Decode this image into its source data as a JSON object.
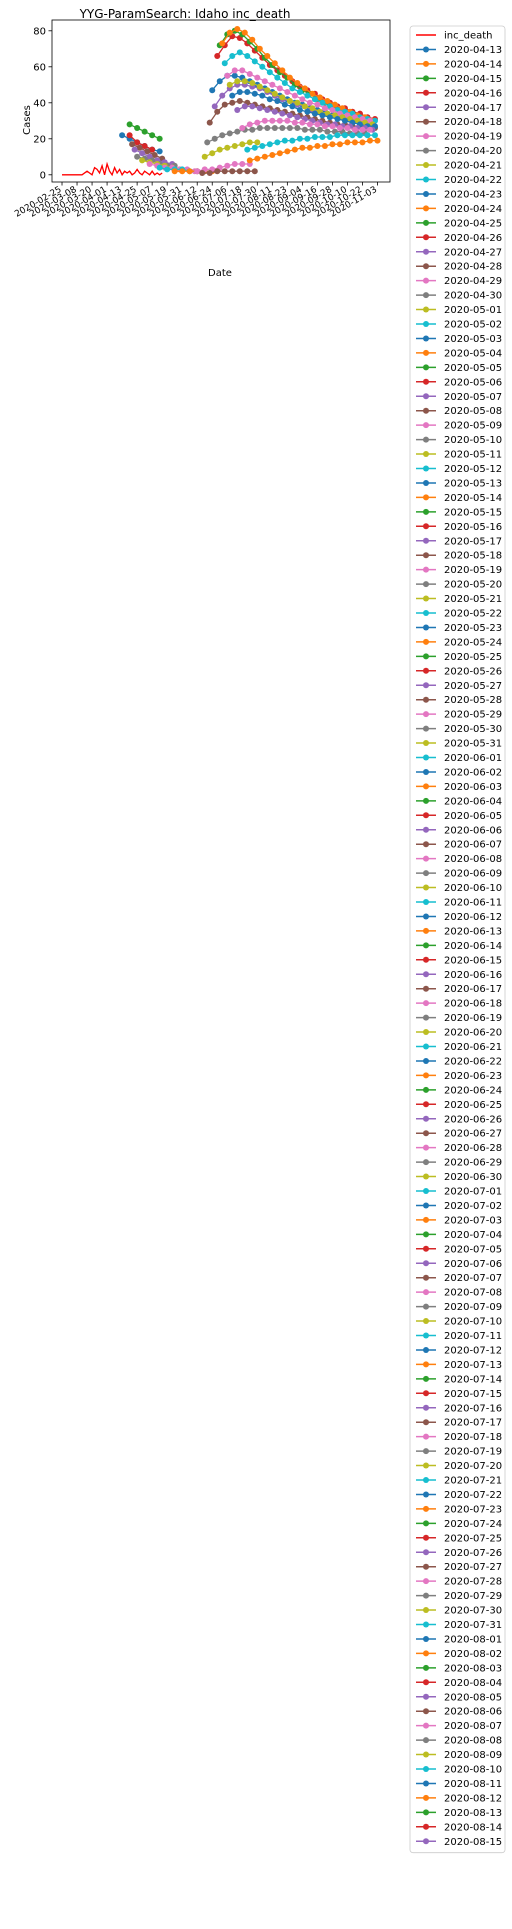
{
  "chart_data": {
    "type": "line",
    "title": "YYG-ParamSearch: Idaho inc_death",
    "xlabel": "Date",
    "ylabel": "Cases",
    "ylim": [
      -4,
      86
    ],
    "yticks": [
      0,
      20,
      40,
      60,
      80
    ],
    "x_tick_labels": [
      "2020-02-25",
      "2020-03-08",
      "2020-03-20",
      "2020-04-01",
      "2020-04-13",
      "2020-04-25",
      "2020-05-07",
      "2020-05-19",
      "2020-05-31",
      "2020-06-12",
      "2020-06-24",
      "2020-07-06",
      "2020-07-18",
      "2020-07-30",
      "2020-08-11",
      "2020-08-23",
      "2020-09-04",
      "2020-09-16",
      "2020-09-28",
      "2020-10-10",
      "2020-10-22",
      "2020-11-03"
    ],
    "actual": {
      "name": "inc_death",
      "color": "#ff0000",
      "x": [
        0,
        8,
        16,
        20,
        22,
        24,
        26,
        28,
        30,
        32,
        34,
        36,
        38,
        40,
        42,
        44,
        46,
        48,
        50,
        52,
        54,
        56,
        58,
        60,
        62,
        64,
        66,
        68,
        70,
        72,
        74,
        76,
        78,
        80
      ],
      "values": [
        0,
        0,
        0,
        2,
        1,
        0,
        4,
        3,
        1,
        5,
        0,
        6,
        2,
        0,
        4,
        1,
        3,
        0,
        2,
        1,
        2,
        0,
        1,
        3,
        1,
        0,
        2,
        1,
        0,
        2,
        0,
        1,
        0,
        1
      ]
    },
    "forecast_series_start": "2020-04-13",
    "forecast_series_end": "2020-08-15",
    "legend_title_series": "inc_death",
    "legend_dates": [],
    "palette": [
      "#1f77b4",
      "#ff7f0e",
      "#2ca02c",
      "#d62728",
      "#9467bd",
      "#8c564b",
      "#e377c2",
      "#7f7f7f",
      "#bcbd22",
      "#17becf"
    ],
    "forecast_groups": [
      {
        "start_day": 48,
        "days": [
          48,
          54,
          60,
          66,
          72,
          78
        ],
        "values": [
          22,
          20,
          18,
          16,
          14,
          13
        ],
        "color": "#1f77b4"
      },
      {
        "start_day": 54,
        "days": [
          54,
          60,
          66,
          72,
          78
        ],
        "values": [
          28,
          26,
          24,
          22,
          20
        ],
        "color": "#2ca02c"
      },
      {
        "start_day": 54,
        "days": [
          54,
          60,
          66,
          72
        ],
        "values": [
          22,
          18,
          16,
          14
        ],
        "color": "#d62728"
      },
      {
        "start_day": 56,
        "days": [
          56,
          62,
          68,
          74,
          80
        ],
        "values": [
          17,
          15,
          13,
          11,
          9
        ],
        "color": "#8c564b"
      },
      {
        "start_day": 58,
        "days": [
          58,
          64,
          70,
          76,
          82,
          88
        ],
        "values": [
          14,
          12,
          10,
          8,
          7,
          6
        ],
        "color": "#9467bd"
      },
      {
        "start_day": 60,
        "days": [
          60,
          66,
          72,
          78,
          84,
          90
        ],
        "values": [
          10,
          9,
          8,
          6,
          5,
          5
        ],
        "color": "#7f7f7f"
      },
      {
        "start_day": 64,
        "days": [
          64,
          70,
          76,
          82,
          88,
          94
        ],
        "values": [
          8,
          7,
          6,
          5,
          4,
          3
        ],
        "color": "#bcbd22"
      },
      {
        "start_day": 70,
        "days": [
          70,
          76,
          82,
          88,
          94,
          100,
          106
        ],
        "values": [
          6,
          5,
          4,
          4,
          3,
          3,
          2
        ],
        "color": "#e377c2"
      },
      {
        "start_day": 78,
        "days": [
          78,
          84,
          90,
          96,
          102,
          108,
          114
        ],
        "values": [
          4,
          3,
          3,
          3,
          2,
          2,
          2
        ],
        "color": "#17becf"
      },
      {
        "start_day": 90,
        "days": [
          90,
          96,
          102,
          108,
          114,
          120
        ],
        "values": [
          2,
          2,
          2,
          2,
          2,
          2
        ],
        "color": "#ff7f0e"
      },
      {
        "start_day": 108,
        "days": [
          108,
          114,
          120,
          126,
          132,
          138,
          144,
          150
        ],
        "values": [
          2,
          3,
          3,
          4,
          5,
          6,
          6,
          6
        ],
        "color": "#e377c2"
      },
      {
        "start_day": 112,
        "days": [
          112,
          118,
          124,
          130,
          136,
          142,
          148,
          154
        ],
        "values": [
          1,
          1,
          2,
          2,
          2,
          2,
          2,
          2
        ],
        "color": "#8c564b"
      },
      {
        "start_day": 114,
        "days": [
          114,
          120,
          126,
          132,
          138,
          144,
          150,
          156
        ],
        "values": [
          10,
          12,
          14,
          15,
          16,
          17,
          18,
          18
        ],
        "color": "#bcbd22"
      },
      {
        "start_day": 116,
        "days": [
          116,
          122,
          128,
          134,
          140,
          146,
          152,
          158,
          164,
          170,
          176,
          182,
          188,
          194,
          200,
          206,
          212,
          218,
          224,
          230,
          236,
          242
        ],
        "values": [
          18,
          20,
          22,
          23,
          24,
          25,
          25,
          26,
          26,
          26,
          26,
          26,
          26,
          25,
          25,
          25,
          24,
          24,
          24,
          23,
          23,
          23
        ],
        "color": "#7f7f7f"
      },
      {
        "start_day": 118,
        "days": [
          118,
          124,
          130,
          136,
          142,
          148,
          154,
          160,
          166,
          172,
          178,
          184,
          190,
          196,
          202,
          208,
          214,
          220,
          226,
          232,
          238,
          244,
          250
        ],
        "values": [
          29,
          35,
          39,
          40,
          41,
          40,
          39,
          38,
          37,
          36,
          35,
          34,
          33,
          32,
          31,
          30,
          29,
          28,
          28,
          27,
          27,
          26,
          26
        ],
        "color": "#8c564b"
      },
      {
        "start_day": 120,
        "days": [
          120,
          126,
          132,
          138,
          144,
          150,
          156,
          162,
          168,
          174,
          180,
          186,
          192,
          198,
          204,
          210,
          216,
          222,
          228,
          234,
          240,
          246
        ],
        "values": [
          47,
          52,
          55,
          55,
          54,
          52,
          50,
          48,
          46,
          44,
          42,
          40,
          39,
          37,
          36,
          35,
          33,
          32,
          31,
          30,
          29,
          28
        ],
        "color": "#1f77b4"
      },
      {
        "start_day": 124,
        "days": [
          124,
          130,
          136,
          142,
          148,
          154,
          160,
          166,
          172,
          178,
          184,
          190,
          196,
          202,
          208,
          214,
          220,
          226,
          232,
          238,
          244,
          250
        ],
        "values": [
          66,
          72,
          77,
          76,
          73,
          69,
          65,
          61,
          58,
          55,
          52,
          49,
          47,
          45,
          42,
          40,
          38,
          37,
          35,
          34,
          32,
          31
        ],
        "color": "#d62728"
      },
      {
        "start_day": 126,
        "days": [
          126,
          132,
          138,
          144,
          150,
          156,
          162,
          168,
          174,
          180,
          186,
          192,
          198,
          204,
          210,
          216,
          222,
          228,
          234,
          240,
          246
        ],
        "values": [
          72,
          78,
          80,
          78,
          74,
          70,
          65,
          61,
          57,
          54,
          50,
          47,
          45,
          42,
          40,
          38,
          36,
          34,
          33,
          31,
          30
        ],
        "color": "#2ca02c"
      },
      {
        "start_day": 128,
        "days": [
          128,
          134,
          140,
          146,
          152,
          158,
          164,
          170,
          176,
          182,
          188,
          194,
          200,
          206,
          212,
          218,
          224,
          230,
          236,
          242,
          248
        ],
        "values": [
          73,
          79,
          81,
          79,
          75,
          70,
          66,
          62,
          58,
          54,
          51,
          48,
          45,
          43,
          41,
          39,
          37,
          35,
          33,
          32,
          30
        ],
        "color": "#ff7f0e"
      },
      {
        "start_day": 130,
        "days": [
          130,
          136,
          142,
          148,
          154,
          160,
          166,
          172,
          178,
          184,
          190,
          196,
          202,
          208,
          214,
          220,
          226,
          232,
          238,
          244,
          250
        ],
        "values": [
          62,
          66,
          68,
          66,
          63,
          60,
          57,
          54,
          51,
          48,
          46,
          44,
          42,
          40,
          38,
          36,
          35,
          34,
          32,
          31,
          30
        ],
        "color": "#17becf"
      },
      {
        "start_day": 122,
        "days": [
          122,
          128,
          134,
          140,
          146,
          152,
          158,
          164,
          170,
          176,
          182,
          188,
          194,
          200,
          206,
          212,
          218,
          224,
          230,
          236,
          242,
          248
        ],
        "values": [
          38,
          44,
          48,
          50,
          50,
          49,
          48,
          46,
          44,
          42,
          41,
          39,
          38,
          36,
          35,
          34,
          33,
          32,
          31,
          30,
          29,
          28
        ],
        "color": "#9467bd"
      },
      {
        "start_day": 132,
        "days": [
          132,
          138,
          144,
          150,
          156,
          162,
          168,
          174,
          180,
          186,
          192,
          198,
          204,
          210,
          216,
          222,
          228,
          234,
          240,
          246
        ],
        "values": [
          55,
          58,
          58,
          56,
          54,
          52,
          50,
          48,
          46,
          44,
          42,
          40,
          39,
          37,
          36,
          34,
          33,
          32,
          31,
          30
        ],
        "color": "#e377c2"
      },
      {
        "start_day": 134,
        "days": [
          134,
          140,
          146,
          152,
          158,
          164,
          170,
          176,
          182,
          188,
          194,
          200,
          206,
          212,
          218,
          224,
          230,
          236,
          242,
          248
        ],
        "values": [
          50,
          52,
          52,
          51,
          49,
          47,
          45,
          43,
          41,
          40,
          38,
          37,
          35,
          34,
          33,
          32,
          31,
          30,
          29,
          28
        ],
        "color": "#bcbd22"
      },
      {
        "start_day": 136,
        "days": [
          136,
          142,
          148,
          154,
          160,
          166,
          172,
          178,
          184,
          190,
          196,
          202,
          208,
          214,
          220,
          226,
          232,
          238,
          244,
          250
        ],
        "values": [
          44,
          46,
          46,
          45,
          44,
          42,
          41,
          39,
          38,
          36,
          35,
          34,
          33,
          32,
          31,
          30,
          29,
          28,
          27,
          27
        ],
        "color": "#1f77b4"
      },
      {
        "start_day": 140,
        "days": [
          140,
          146,
          152,
          158,
          164,
          170,
          176,
          182,
          188,
          194,
          200,
          206,
          212,
          218,
          224,
          230,
          236,
          242,
          248
        ],
        "values": [
          36,
          38,
          38,
          37,
          36,
          35,
          34,
          33,
          32,
          31,
          30,
          29,
          28,
          28,
          27,
          27,
          26,
          26,
          25
        ],
        "color": "#9467bd"
      },
      {
        "start_day": 144,
        "days": [
          144,
          150,
          156,
          162,
          168,
          174,
          180,
          186,
          192,
          198,
          204,
          210,
          216,
          222,
          228,
          234,
          240,
          246
        ],
        "values": [
          26,
          28,
          29,
          30,
          30,
          30,
          30,
          29,
          29,
          28,
          28,
          27,
          27,
          26,
          26,
          25,
          25,
          25
        ],
        "color": "#e377c2"
      },
      {
        "start_day": 148,
        "days": [
          148,
          154,
          160,
          166,
          172,
          178,
          184,
          190,
          196,
          202,
          208,
          214,
          220,
          226,
          232,
          238,
          244,
          250
        ],
        "values": [
          14,
          15,
          16,
          17,
          18,
          19,
          19,
          20,
          20,
          21,
          21,
          21,
          22,
          22,
          22,
          22,
          22,
          22
        ],
        "color": "#17becf"
      },
      {
        "start_day": 150,
        "days": [
          150,
          156,
          162,
          168,
          174,
          180,
          186,
          192,
          198,
          204,
          210,
          216,
          222,
          228,
          234,
          240,
          246,
          252
        ],
        "values": [
          8,
          9,
          10,
          11,
          12,
          13,
          14,
          15,
          15,
          16,
          16,
          17,
          17,
          18,
          18,
          18,
          19,
          19
        ],
        "color": "#ff7f0e"
      }
    ]
  }
}
